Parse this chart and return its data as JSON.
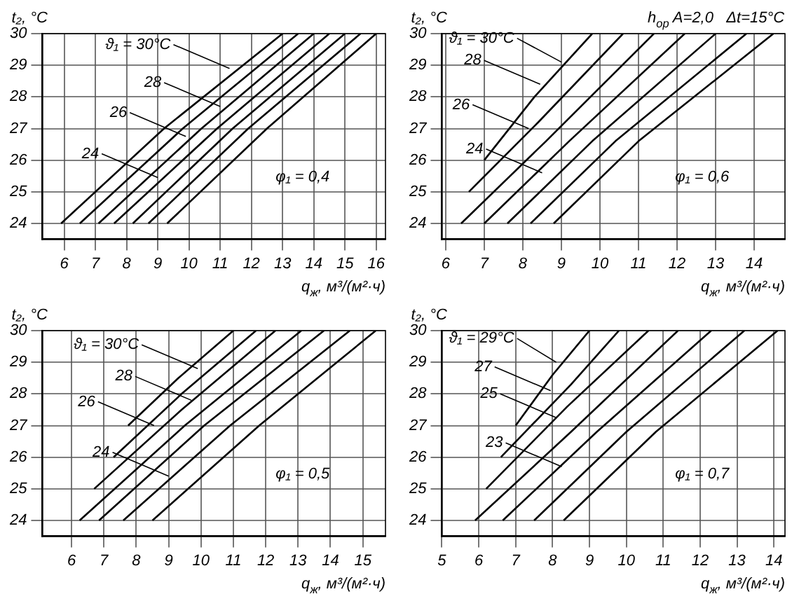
{
  "chart_data": [
    {
      "type": "line",
      "ylabel": "t₂, °C",
      "xlabel": "q$_{ж}$, м³/(м²·ч)",
      "xlim": [
        5.3,
        16.3
      ],
      "xticks": [
        6,
        7,
        8,
        9,
        10,
        11,
        12,
        13,
        14,
        15,
        16
      ],
      "ylim": [
        23.5,
        30
      ],
      "yticks": [
        24,
        25,
        26,
        27,
        28,
        29,
        30
      ],
      "grid": true,
      "legend": false,
      "marker": "none",
      "series": [
        {
          "color": "#000000",
          "x": [
            5.9,
            9.2,
            13.0
          ],
          "values": [
            24,
            27,
            30
          ]
        },
        {
          "color": "#000000",
          "x": [
            6.5,
            9.8,
            13.5
          ],
          "values": [
            24,
            27,
            30
          ]
        },
        {
          "color": "#000000",
          "x": [
            7.1,
            10.4,
            14.0
          ],
          "values": [
            24,
            27,
            30
          ]
        },
        {
          "color": "#000000",
          "x": [
            7.6,
            10.9,
            14.5
          ],
          "values": [
            24,
            27,
            30
          ]
        },
        {
          "color": "#000000",
          "x": [
            8.2,
            11.4,
            15.0
          ],
          "values": [
            24,
            27,
            30
          ]
        },
        {
          "color": "#000000",
          "x": [
            8.7,
            11.9,
            15.5
          ],
          "values": [
            24,
            27,
            30
          ]
        },
        {
          "color": "#000000",
          "x": [
            9.3,
            12.5,
            16.0
          ],
          "values": [
            24,
            27,
            30
          ]
        }
      ],
      "annotations": [
        {
          "text": "ϑ₁ = 30°C",
          "x": 11.3,
          "y": 28.9
        },
        {
          "text": "28",
          "x": 11.0,
          "y": 27.7
        },
        {
          "text": "26",
          "x": 9.9,
          "y": 26.75
        },
        {
          "text": "24",
          "x": 9.0,
          "y": 25.45
        },
        "φ₁ = 0,4"
      ]
    },
    {
      "type": "line",
      "title": "h$_{ор}$ A=2,0   Δt=15°C",
      "ylabel": "t₂, °C",
      "xlabel": "q$_{ж}$, м³/(м²·ч)",
      "xlim": [
        5.9,
        14.8
      ],
      "xticks": [
        6,
        7,
        8,
        9,
        10,
        11,
        12,
        13,
        14
      ],
      "ylim": [
        23.5,
        30
      ],
      "yticks": [
        24,
        25,
        26,
        27,
        28,
        29,
        30
      ],
      "grid": true,
      "legend": false,
      "marker": "none",
      "series": [
        {
          "color": "#000000",
          "x": [
            7.0,
            8.3,
            9.8
          ],
          "values": [
            26,
            28,
            30
          ]
        },
        {
          "color": "#000000",
          "x": [
            6.6,
            8.4,
            10.6
          ],
          "values": [
            25,
            27.2,
            30
          ]
        },
        {
          "color": "#000000",
          "x": [
            6.4,
            8.6,
            11.4
          ],
          "values": [
            24,
            26.6,
            30
          ]
        },
        {
          "color": "#000000",
          "x": [
            7.0,
            9.2,
            12.2
          ],
          "values": [
            24,
            26.6,
            30
          ]
        },
        {
          "color": "#000000",
          "x": [
            7.6,
            9.8,
            13.0
          ],
          "values": [
            24,
            26.6,
            30
          ]
        },
        {
          "color": "#000000",
          "x": [
            8.2,
            10.4,
            13.8
          ],
          "values": [
            24,
            26.6,
            30
          ]
        },
        {
          "color": "#000000",
          "x": [
            8.8,
            11.0,
            14.5
          ],
          "values": [
            24,
            26.6,
            30
          ]
        }
      ],
      "annotations": [
        {
          "text": "ϑ₁ = 30°C",
          "x": 9.0,
          "y": 29.1
        },
        {
          "text": "28",
          "x": 8.45,
          "y": 28.4
        },
        {
          "text": "26",
          "x": 8.15,
          "y": 27.0
        },
        {
          "text": "24",
          "x": 8.5,
          "y": 25.6
        },
        "φ₁ = 0,6"
      ]
    },
    {
      "type": "line",
      "ylabel": "t₂, °C",
      "xlabel": "q$_{ж}$, м³/(м²·ч)",
      "xlim": [
        5.1,
        15.7
      ],
      "xticks": [
        6,
        7,
        8,
        9,
        10,
        11,
        12,
        13,
        14,
        15
      ],
      "ylim": [
        23.5,
        30
      ],
      "yticks": [
        24,
        25,
        26,
        27,
        28,
        29,
        30
      ],
      "grid": true,
      "legend": false,
      "marker": "none",
      "series": [
        {
          "color": "#000000",
          "x": [
            7.75,
            9.3,
            11.0
          ],
          "values": [
            27,
            28.5,
            30
          ]
        },
        {
          "color": "#000000",
          "x": [
            7.3,
            9.4,
            11.7
          ],
          "values": [
            26,
            28,
            30
          ]
        },
        {
          "color": "#000000",
          "x": [
            6.7,
            9.4,
            12.3
          ],
          "values": [
            25,
            27.5,
            30
          ]
        },
        {
          "color": "#000000",
          "x": [
            6.25,
            9.5,
            13.1
          ],
          "values": [
            24,
            27,
            30
          ]
        },
        {
          "color": "#000000",
          "x": [
            6.85,
            10.1,
            13.8
          ],
          "values": [
            24,
            27,
            30
          ]
        },
        {
          "color": "#000000",
          "x": [
            7.6,
            10.9,
            14.6
          ],
          "values": [
            24,
            27,
            30
          ]
        },
        {
          "color": "#000000",
          "x": [
            8.5,
            11.8,
            15.4
          ],
          "values": [
            24,
            27,
            30
          ]
        }
      ],
      "annotations": [
        {
          "text": "ϑ₁ = 30°C",
          "x": 9.9,
          "y": 28.8
        },
        {
          "text": "28",
          "x": 9.7,
          "y": 27.8
        },
        {
          "text": "26",
          "x": 8.55,
          "y": 27.0
        },
        {
          "text": "24",
          "x": 9.0,
          "y": 25.4
        },
        "φ₁ = 0,5"
      ]
    },
    {
      "type": "line",
      "ylabel": "t₂, °C",
      "xlabel": "q$_{ж}$, м³/(м²·ч)",
      "xlim": [
        5.0,
        14.3
      ],
      "xticks": [
        5,
        6,
        7,
        8,
        9,
        10,
        11,
        12,
        13,
        14
      ],
      "ylim": [
        23.5,
        30
      ],
      "yticks": [
        24,
        25,
        26,
        27,
        28,
        29,
        30
      ],
      "grid": true,
      "legend": false,
      "marker": "none",
      "series": [
        {
          "color": "#000000",
          "x": [
            7.0,
            8.0,
            9.0
          ],
          "values": [
            27,
            28.6,
            30
          ]
        },
        {
          "color": "#000000",
          "x": [
            6.6,
            8.5,
            9.8
          ],
          "values": [
            26,
            28.3,
            30
          ]
        },
        {
          "color": "#000000",
          "x": [
            6.2,
            8.4,
            10.6
          ],
          "values": [
            25,
            27.6,
            30
          ]
        },
        {
          "color": "#000000",
          "x": [
            5.9,
            8.5,
            11.4
          ],
          "values": [
            24,
            26.8,
            30
          ]
        },
        {
          "color": "#000000",
          "x": [
            6.65,
            9.2,
            12.3
          ],
          "values": [
            24,
            26.8,
            30
          ]
        },
        {
          "color": "#000000",
          "x": [
            7.5,
            10.0,
            13.2
          ],
          "values": [
            24,
            26.8,
            30
          ]
        },
        {
          "color": "#000000",
          "x": [
            8.3,
            10.8,
            14.1
          ],
          "values": [
            24,
            26.8,
            30
          ]
        }
      ],
      "annotations": [
        {
          "text": "ϑ₁ = 29°C",
          "x": 8.1,
          "y": 29.0
        },
        {
          "text": "27",
          "x": 7.95,
          "y": 28.1
        },
        {
          "text": "25",
          "x": 8.1,
          "y": 27.25
        },
        {
          "text": "23",
          "x": 8.25,
          "y": 25.7
        },
        "φ₁ = 0,7"
      ]
    }
  ]
}
